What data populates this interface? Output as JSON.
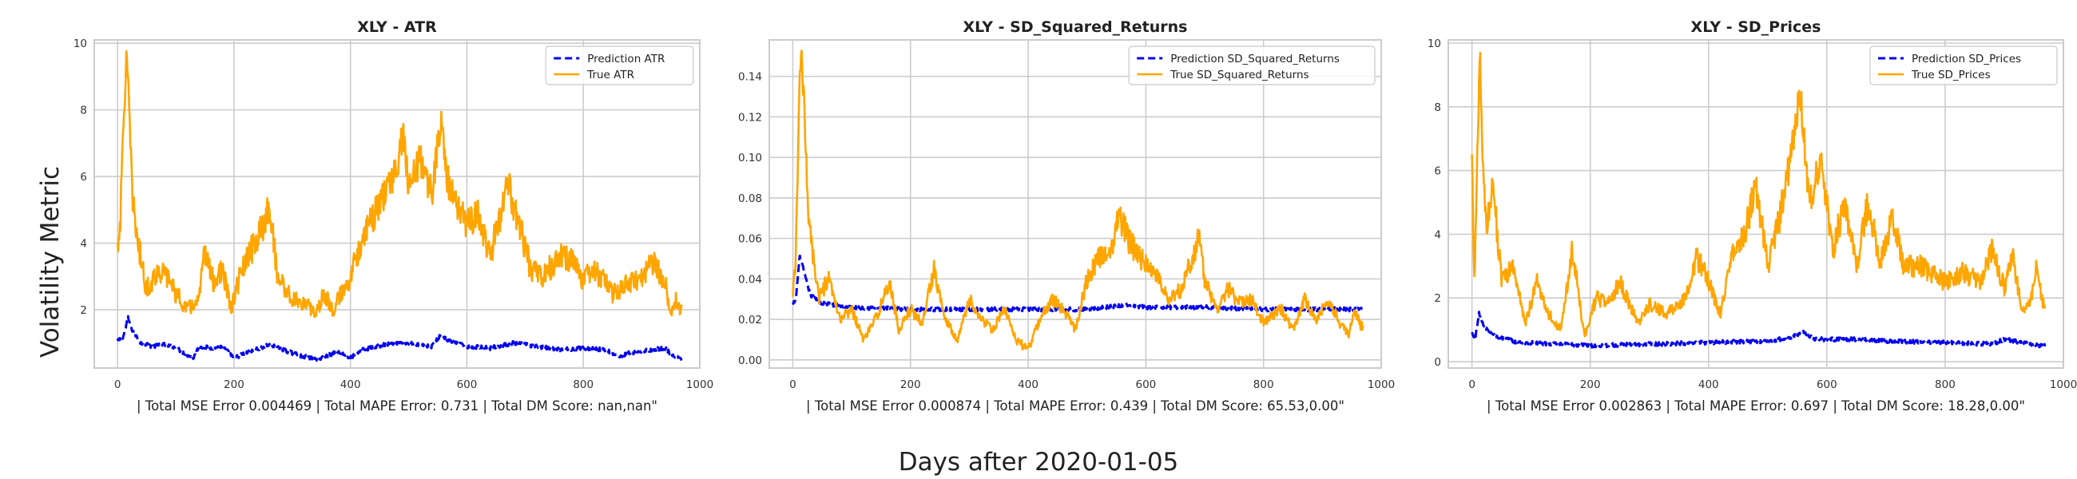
{
  "figure": {
    "ylabel": "Volatility Metric",
    "xlabel": "Days after 2020-01-05"
  },
  "colors": {
    "prediction": "#0000ee",
    "true": "#ffa500",
    "grid": "#cccccc",
    "frame": "#cccccc"
  },
  "chart_data": [
    {
      "type": "line",
      "title": "XLY - ATR",
      "caption": "| Total MSE Error 0.004469 | Total MAPE Error: 0.731 | Total DM Score: nan,nan\"",
      "xlim": [
        -40,
        1000
      ],
      "ylim": [
        0.25,
        10.1
      ],
      "xticks": [
        0,
        200,
        400,
        600,
        800,
        1000
      ],
      "yticks": [
        2,
        4,
        6,
        8,
        10
      ],
      "legend_position": "top-right",
      "n_points": 970,
      "series": [
        {
          "name": "Prediction ATR",
          "style": "dashed",
          "color": "#0000ee",
          "knots": [
            [
              0,
              1.05
            ],
            [
              10,
              1.2
            ],
            [
              18,
              1.75
            ],
            [
              25,
              1.4
            ],
            [
              40,
              1.0
            ],
            [
              60,
              0.9
            ],
            [
              80,
              0.95
            ],
            [
              100,
              0.85
            ],
            [
              130,
              0.55
            ],
            [
              140,
              0.9
            ],
            [
              160,
              0.85
            ],
            [
              180,
              0.9
            ],
            [
              200,
              0.55
            ],
            [
              220,
              0.7
            ],
            [
              260,
              0.95
            ],
            [
              300,
              0.7
            ],
            [
              340,
              0.5
            ],
            [
              380,
              0.75
            ],
            [
              400,
              0.55
            ],
            [
              420,
              0.8
            ],
            [
              460,
              0.95
            ],
            [
              500,
              1.0
            ],
            [
              540,
              0.9
            ],
            [
              555,
              1.25
            ],
            [
              570,
              1.05
            ],
            [
              600,
              0.9
            ],
            [
              640,
              0.85
            ],
            [
              680,
              1.0
            ],
            [
              720,
              0.9
            ],
            [
              760,
              0.8
            ],
            [
              800,
              0.85
            ],
            [
              840,
              0.8
            ],
            [
              860,
              0.6
            ],
            [
              880,
              0.7
            ],
            [
              920,
              0.8
            ],
            [
              940,
              0.85
            ],
            [
              955,
              0.6
            ],
            [
              965,
              0.55
            ]
          ]
        },
        {
          "name": "True ATR",
          "style": "solid",
          "color": "#ffa500",
          "knots": [
            [
              0,
              3.9
            ],
            [
              5,
              4.8
            ],
            [
              10,
              7.5
            ],
            [
              15,
              9.6
            ],
            [
              20,
              8.0
            ],
            [
              25,
              5.5
            ],
            [
              35,
              4.0
            ],
            [
              50,
              2.6
            ],
            [
              70,
              3.2
            ],
            [
              90,
              2.9
            ],
            [
              100,
              2.5
            ],
            [
              120,
              2.0
            ],
            [
              140,
              2.3
            ],
            [
              150,
              3.8
            ],
            [
              165,
              2.8
            ],
            [
              180,
              3.2
            ],
            [
              195,
              2.0
            ],
            [
              210,
              3.0
            ],
            [
              230,
              3.8
            ],
            [
              250,
              4.5
            ],
            [
              260,
              5.2
            ],
            [
              275,
              3.0
            ],
            [
              300,
              2.3
            ],
            [
              320,
              2.2
            ],
            [
              340,
              1.9
            ],
            [
              355,
              2.5
            ],
            [
              370,
              2.0
            ],
            [
              385,
              2.5
            ],
            [
              400,
              3.0
            ],
            [
              420,
              4.2
            ],
            [
              440,
              4.8
            ],
            [
              460,
              5.5
            ],
            [
              480,
              6.3
            ],
            [
              490,
              7.3
            ],
            [
              500,
              5.8
            ],
            [
              520,
              6.5
            ],
            [
              540,
              5.5
            ],
            [
              555,
              7.7
            ],
            [
              565,
              6.0
            ],
            [
              580,
              5.2
            ],
            [
              600,
              4.6
            ],
            [
              620,
              4.9
            ],
            [
              640,
              3.6
            ],
            [
              660,
              5.0
            ],
            [
              670,
              5.8
            ],
            [
              690,
              4.5
            ],
            [
              710,
              3.2
            ],
            [
              730,
              3.0
            ],
            [
              760,
              3.6
            ],
            [
              780,
              3.5
            ],
            [
              800,
              2.9
            ],
            [
              820,
              3.2
            ],
            [
              850,
              2.5
            ],
            [
              880,
              2.8
            ],
            [
              900,
              3.0
            ],
            [
              920,
              3.4
            ],
            [
              940,
              2.9
            ],
            [
              950,
              1.9
            ],
            [
              960,
              2.4
            ],
            [
              965,
              2.0
            ]
          ]
        }
      ]
    },
    {
      "type": "line",
      "title": "XLY - SD_Squared_Returns",
      "caption": "| Total MSE Error 0.000874 | Total MAPE Error: 0.439 | Total DM Score: 65.53,0.00\"",
      "xlim": [
        -40,
        1000
      ],
      "ylim": [
        -0.004,
        0.158
      ],
      "xticks": [
        0,
        200,
        400,
        600,
        800,
        1000
      ],
      "yticks": [
        0.0,
        0.02,
        0.04,
        0.06,
        0.08,
        0.1,
        0.12,
        0.14
      ],
      "legend_position": "top-right",
      "n_points": 970,
      "series": [
        {
          "name": "Prediction SD_Squared_Returns",
          "style": "dashed",
          "color": "#0000ee",
          "knots": [
            [
              0,
              0.027
            ],
            [
              5,
              0.03
            ],
            [
              12,
              0.052
            ],
            [
              20,
              0.042
            ],
            [
              30,
              0.032
            ],
            [
              50,
              0.028
            ],
            [
              100,
              0.026
            ],
            [
              200,
              0.025
            ],
            [
              300,
              0.025
            ],
            [
              400,
              0.025
            ],
            [
              500,
              0.025
            ],
            [
              560,
              0.027
            ],
            [
              600,
              0.026
            ],
            [
              700,
              0.026
            ],
            [
              800,
              0.025
            ],
            [
              900,
              0.025
            ],
            [
              965,
              0.025
            ]
          ]
        },
        {
          "name": "True SD_Squared_Returns",
          "style": "solid",
          "color": "#ffa500",
          "knots": [
            [
              0,
              0.03
            ],
            [
              5,
              0.05
            ],
            [
              10,
              0.12
            ],
            [
              14,
              0.152
            ],
            [
              20,
              0.12
            ],
            [
              25,
              0.08
            ],
            [
              35,
              0.05
            ],
            [
              45,
              0.03
            ],
            [
              60,
              0.04
            ],
            [
              80,
              0.02
            ],
            [
              100,
              0.025
            ],
            [
              120,
              0.01
            ],
            [
              140,
              0.02
            ],
            [
              165,
              0.038
            ],
            [
              180,
              0.015
            ],
            [
              200,
              0.025
            ],
            [
              220,
              0.018
            ],
            [
              240,
              0.045
            ],
            [
              260,
              0.02
            ],
            [
              280,
              0.01
            ],
            [
              300,
              0.03
            ],
            [
              320,
              0.02
            ],
            [
              340,
              0.015
            ],
            [
              360,
              0.025
            ],
            [
              380,
              0.01
            ],
            [
              400,
              0.005
            ],
            [
              420,
              0.02
            ],
            [
              440,
              0.03
            ],
            [
              460,
              0.025
            ],
            [
              480,
              0.015
            ],
            [
              500,
              0.04
            ],
            [
              520,
              0.05
            ],
            [
              540,
              0.055
            ],
            [
              555,
              0.072
            ],
            [
              570,
              0.06
            ],
            [
              590,
              0.05
            ],
            [
              610,
              0.045
            ],
            [
              640,
              0.03
            ],
            [
              660,
              0.035
            ],
            [
              690,
              0.06
            ],
            [
              700,
              0.04
            ],
            [
              720,
              0.025
            ],
            [
              740,
              0.035
            ],
            [
              760,
              0.028
            ],
            [
              780,
              0.03
            ],
            [
              800,
              0.018
            ],
            [
              830,
              0.025
            ],
            [
              850,
              0.015
            ],
            [
              870,
              0.03
            ],
            [
              890,
              0.02
            ],
            [
              910,
              0.03
            ],
            [
              930,
              0.018
            ],
            [
              945,
              0.012
            ],
            [
              955,
              0.025
            ],
            [
              965,
              0.017
            ]
          ]
        }
      ]
    },
    {
      "type": "line",
      "title": "XLY - SD_Prices",
      "caption": "| Total MSE Error 0.002863 | Total MAPE Error: 0.697 | Total DM Score: 18.28,0.00\"",
      "xlim": [
        -40,
        1000
      ],
      "ylim": [
        -0.2,
        10.1
      ],
      "xticks": [
        0,
        200,
        400,
        600,
        800,
        1000
      ],
      "yticks": [
        0,
        2,
        4,
        6,
        8,
        10
      ],
      "legend_position": "top-right",
      "n_points": 970,
      "series": [
        {
          "name": "Prediction SD_Prices",
          "style": "dashed",
          "color": "#0000ee",
          "knots": [
            [
              0,
              0.9
            ],
            [
              5,
              0.7
            ],
            [
              12,
              1.5
            ],
            [
              20,
              1.1
            ],
            [
              40,
              0.8
            ],
            [
              80,
              0.6
            ],
            [
              150,
              0.55
            ],
            [
              200,
              0.5
            ],
            [
              300,
              0.55
            ],
            [
              400,
              0.6
            ],
            [
              500,
              0.65
            ],
            [
              540,
              0.75
            ],
            [
              560,
              0.95
            ],
            [
              580,
              0.7
            ],
            [
              650,
              0.7
            ],
            [
              700,
              0.65
            ],
            [
              800,
              0.6
            ],
            [
              880,
              0.55
            ],
            [
              900,
              0.7
            ],
            [
              930,
              0.6
            ],
            [
              965,
              0.5
            ]
          ]
        },
        {
          "name": "True SD_Prices",
          "style": "solid",
          "color": "#ffa500",
          "knots": [
            [
              0,
              6.3
            ],
            [
              4,
              2.5
            ],
            [
              8,
              5.5
            ],
            [
              12,
              8.7
            ],
            [
              14,
              9.6
            ],
            [
              18,
              6.0
            ],
            [
              25,
              4.0
            ],
            [
              35,
              5.8
            ],
            [
              50,
              2.5
            ],
            [
              70,
              3.0
            ],
            [
              90,
              1.2
            ],
            [
              110,
              2.5
            ],
            [
              130,
              1.5
            ],
            [
              150,
              1.0
            ],
            [
              170,
              3.5
            ],
            [
              190,
              0.8
            ],
            [
              210,
              2.0
            ],
            [
              230,
              1.8
            ],
            [
              250,
              2.5
            ],
            [
              280,
              1.2
            ],
            [
              300,
              1.8
            ],
            [
              330,
              1.5
            ],
            [
              360,
              2.0
            ],
            [
              380,
              3.3
            ],
            [
              400,
              2.5
            ],
            [
              420,
              1.5
            ],
            [
              440,
              3.5
            ],
            [
              460,
              4.0
            ],
            [
              480,
              5.5
            ],
            [
              500,
              3.0
            ],
            [
              520,
              4.5
            ],
            [
              540,
              6.5
            ],
            [
              555,
              8.5
            ],
            [
              570,
              5.0
            ],
            [
              590,
              6.3
            ],
            [
              610,
              3.5
            ],
            [
              630,
              5.0
            ],
            [
              650,
              3.0
            ],
            [
              670,
              5.0
            ],
            [
              690,
              3.0
            ],
            [
              710,
              4.5
            ],
            [
              730,
              3.0
            ],
            [
              760,
              3.0
            ],
            [
              800,
              2.5
            ],
            [
              830,
              2.8
            ],
            [
              860,
              2.5
            ],
            [
              880,
              3.5
            ],
            [
              900,
              2.3
            ],
            [
              915,
              3.3
            ],
            [
              930,
              1.5
            ],
            [
              945,
              2.0
            ],
            [
              955,
              3.0
            ],
            [
              965,
              1.8
            ]
          ]
        }
      ]
    }
  ]
}
